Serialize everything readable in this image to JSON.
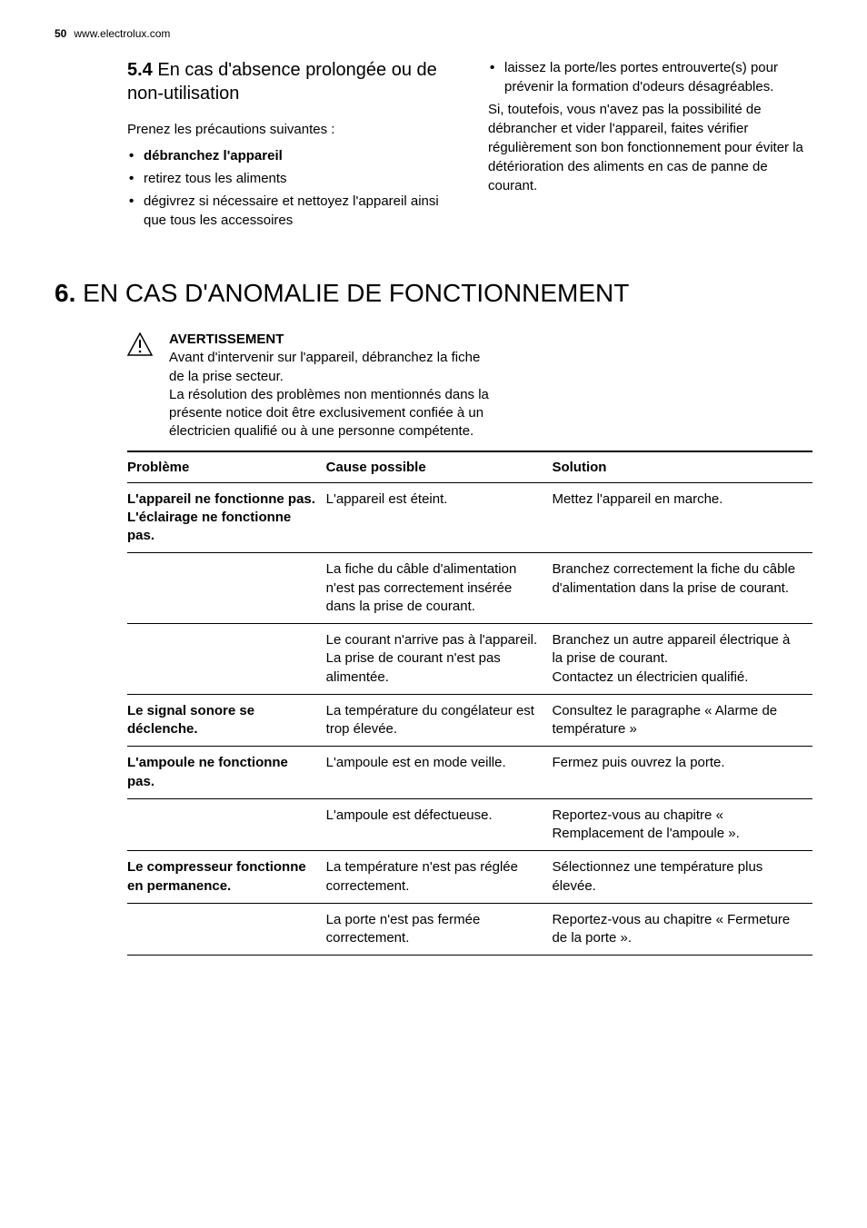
{
  "header": {
    "page_number": "50",
    "url": "www.electrolux.com"
  },
  "section54": {
    "number": "5.4",
    "title": "En cas d'absence prolongée ou de non-utilisation",
    "intro": "Prenez les précautions suivantes :",
    "bullets": [
      {
        "text": "débranchez l'appareil",
        "bold": true
      },
      {
        "text": "retirez tous les aliments",
        "bold": false
      },
      {
        "text": "dégivrez si nécessaire et nettoyez l'appareil ainsi que tous les accessoires",
        "bold": false
      }
    ],
    "right_bullet": "laissez la porte/les portes entrouverte(s) pour prévenir la formation d'odeurs désagréables.",
    "right_para": "Si, toutefois, vous n'avez pas la possibilité de débrancher et vider l'appareil, faites vérifier régulièrement son bon fonctionnement pour éviter la détérioration des aliments en cas de panne de courant."
  },
  "chapter6": {
    "number": "6.",
    "title": "EN CAS D'ANOMALIE DE FONCTIONNEMENT"
  },
  "warning": {
    "title": "AVERTISSEMENT",
    "body": "Avant d'intervenir sur l'appareil, débranchez la fiche de la prise secteur.\nLa résolution des problèmes non mentionnés dans la présente notice doit être exclusivement confiée à un électricien qualifié ou à une personne compétente."
  },
  "table": {
    "headers": {
      "problem": "Problème",
      "cause": "Cause possible",
      "solution": "Solution"
    },
    "rows": [
      {
        "problem": "L'appareil ne fonctionne pas. L'éclairage ne fonctionne pas.",
        "cause": "L'appareil est éteint.",
        "solution": "Mettez l'appareil en marche.",
        "bold_problem": true
      },
      {
        "problem": "",
        "cause": "La fiche du câble d'alimentation n'est pas correctement insérée dans la prise de courant.",
        "solution": "Branchez correctement la fiche du câble d'alimentation dans la prise de courant.",
        "bold_problem": false
      },
      {
        "problem": "",
        "cause": "Le courant n'arrive pas à l'appareil. La prise de courant n'est pas alimentée.",
        "solution": "Branchez un autre appareil électrique à la prise de courant.\nContactez un électricien qualifié.",
        "bold_problem": false
      },
      {
        "problem": "Le signal sonore se déclenche.",
        "cause": "La température du congélateur est trop élevée.",
        "solution": "Consultez le paragraphe « Alarme de température »",
        "bold_problem": true
      },
      {
        "problem": "L'ampoule ne fonctionne pas.",
        "cause": "L'ampoule est en mode veille.",
        "solution": "Fermez puis ouvrez la porte.",
        "bold_problem": true
      },
      {
        "problem": "",
        "cause": "L'ampoule est défectueuse.",
        "solution": "Reportez-vous au chapitre « Remplacement de l'ampoule ».",
        "bold_problem": false
      },
      {
        "problem": "Le compresseur fonctionne en permanence.",
        "cause": "La température n'est pas réglée correctement.",
        "solution": "Sélectionnez une température plus élevée.",
        "bold_problem": true
      },
      {
        "problem": "",
        "cause": "La porte n'est pas fermée correctement.",
        "solution": "Reportez-vous au chapitre « Fermeture de la porte ».",
        "bold_problem": false
      }
    ]
  }
}
